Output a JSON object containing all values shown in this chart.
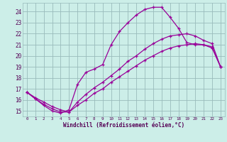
{
  "xlabel": "Windchill (Refroidissement éolien,°C)",
  "background_color": "#cceee8",
  "grid_color": "#99bbbb",
  "line_color": "#990099",
  "xlim": [
    -0.5,
    23.5
  ],
  "ylim": [
    14.5,
    24.8
  ],
  "yticks": [
    15,
    16,
    17,
    18,
    19,
    20,
    21,
    22,
    23,
    24
  ],
  "xticks": [
    0,
    1,
    2,
    3,
    4,
    5,
    6,
    7,
    8,
    9,
    10,
    11,
    12,
    13,
    14,
    15,
    16,
    17,
    18,
    19,
    20,
    21,
    22,
    23
  ],
  "curve1_x": [
    0,
    1,
    2,
    3,
    4,
    5,
    6,
    7,
    8,
    9,
    10,
    11,
    12,
    13,
    14,
    15,
    16,
    17,
    18,
    19,
    20,
    21,
    22,
    23
  ],
  "curve1_y": [
    16.7,
    16.1,
    15.5,
    15.0,
    14.8,
    15.1,
    17.4,
    18.5,
    18.8,
    19.2,
    21.0,
    22.2,
    23.0,
    23.7,
    24.2,
    24.4,
    24.4,
    23.5,
    22.5,
    21.2,
    21.0,
    21.0,
    20.8,
    19.0
  ],
  "curve2_x": [
    0,
    1,
    2,
    3,
    4,
    5,
    6,
    7,
    8,
    9,
    10,
    11,
    12,
    13,
    14,
    15,
    16,
    17,
    18,
    19,
    20,
    21,
    22,
    23
  ],
  "curve2_y": [
    16.7,
    16.2,
    15.8,
    15.4,
    15.1,
    14.9,
    15.8,
    16.5,
    17.1,
    17.6,
    18.2,
    18.8,
    19.5,
    20.0,
    20.6,
    21.1,
    21.5,
    21.8,
    21.9,
    22.0,
    21.8,
    21.4,
    21.1,
    19.0
  ],
  "curve3_x": [
    0,
    1,
    2,
    3,
    4,
    5,
    6,
    7,
    8,
    9,
    10,
    11,
    12,
    13,
    14,
    15,
    16,
    17,
    18,
    19,
    20,
    21,
    22,
    23
  ],
  "curve3_y": [
    16.7,
    16.1,
    15.6,
    15.2,
    14.9,
    14.9,
    15.5,
    16.0,
    16.6,
    17.0,
    17.6,
    18.1,
    18.6,
    19.1,
    19.6,
    20.0,
    20.4,
    20.7,
    20.9,
    21.0,
    21.1,
    21.0,
    20.7,
    19.0
  ]
}
